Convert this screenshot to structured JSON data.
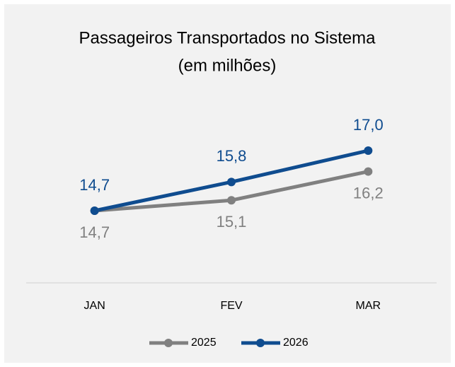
{
  "chart_data": {
    "type": "line",
    "title": "Passageiros Transportados no Sistema",
    "subtitle": "(em milhões)",
    "categories": [
      "JAN",
      "FEV",
      "MAR"
    ],
    "series": [
      {
        "name": "2025",
        "color": "#808080",
        "values": [
          14.7,
          15.1,
          16.2
        ],
        "value_labels": [
          "14,7",
          "15,1",
          "16,2"
        ]
      },
      {
        "name": "2026",
        "color": "#0f4c8f",
        "values": [
          14.7,
          15.8,
          17.0
        ],
        "value_labels": [
          "14,7",
          "15,8",
          "17,0"
        ]
      }
    ],
    "legend": "bottom"
  }
}
